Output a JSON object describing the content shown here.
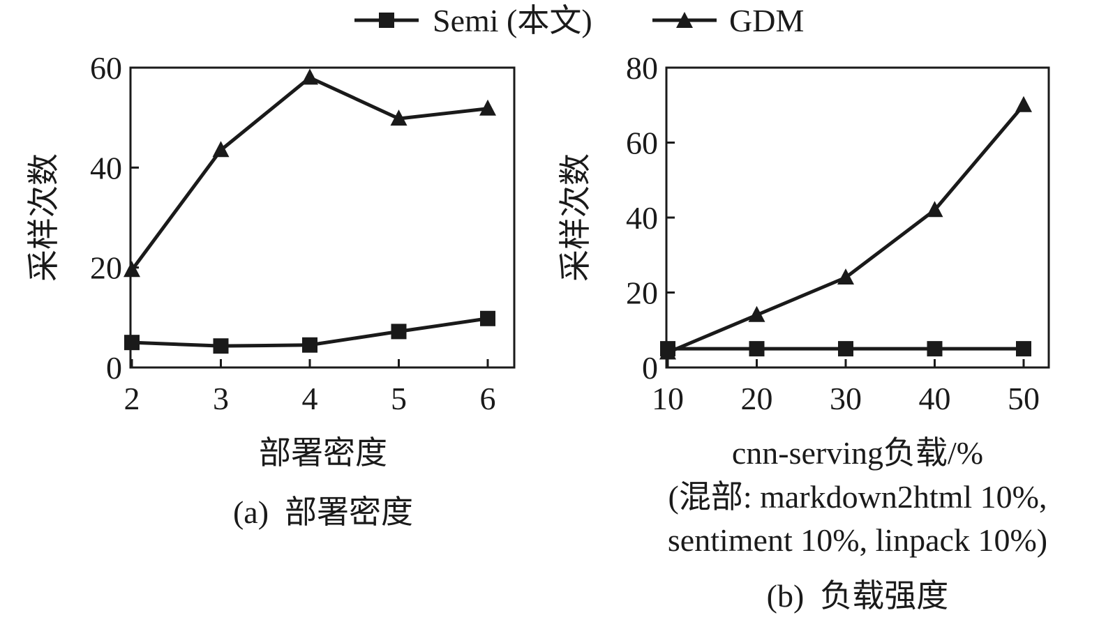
{
  "legend": {
    "items": [
      {
        "label": "Semi (本文)",
        "marker": "square"
      },
      {
        "label": "GDM",
        "marker": "triangle"
      }
    ]
  },
  "colors": {
    "ink": "#1a1a1a",
    "background": "#ffffff"
  },
  "chart_data": [
    {
      "type": "line",
      "ylabel": "采样次数",
      "xlabel": "部署密度",
      "caption": "(a)  部署密度",
      "x": [
        2,
        3,
        4,
        5,
        6
      ],
      "xticks": [
        "2",
        "3",
        "4",
        "5",
        "6"
      ],
      "ylim": [
        0,
        60
      ],
      "yticks": [
        "0",
        "20",
        "40",
        "60"
      ],
      "grid": false,
      "legend_position": "top-center",
      "series": [
        {
          "name": "Semi (本文)",
          "marker": "square",
          "values": [
            5.0,
            4.3,
            4.5,
            7.2,
            9.8
          ]
        },
        {
          "name": "GDM",
          "marker": "triangle",
          "values": [
            19.5,
            43.5,
            58.0,
            49.8,
            51.8
          ]
        }
      ]
    },
    {
      "type": "line",
      "ylabel": "采样次数",
      "xlabel": "cnn-serving负载/%",
      "xlabel_note": [
        "(混部: markdown2html 10%,",
        "sentiment 10%, linpack 10%)"
      ],
      "caption": "(b)  负载强度",
      "x": [
        10,
        20,
        30,
        40,
        50
      ],
      "xticks": [
        "10",
        "20",
        "30",
        "40",
        "50"
      ],
      "ylim": [
        0,
        80
      ],
      "yticks": [
        "0",
        "20",
        "40",
        "60",
        "80"
      ],
      "grid": false,
      "legend_position": "top-center",
      "series": [
        {
          "name": "Semi (本文)",
          "marker": "square",
          "values": [
            5,
            5,
            5,
            5,
            5
          ]
        },
        {
          "name": "GDM",
          "marker": "triangle",
          "values": [
            4,
            14,
            24,
            42,
            70
          ]
        }
      ]
    }
  ]
}
